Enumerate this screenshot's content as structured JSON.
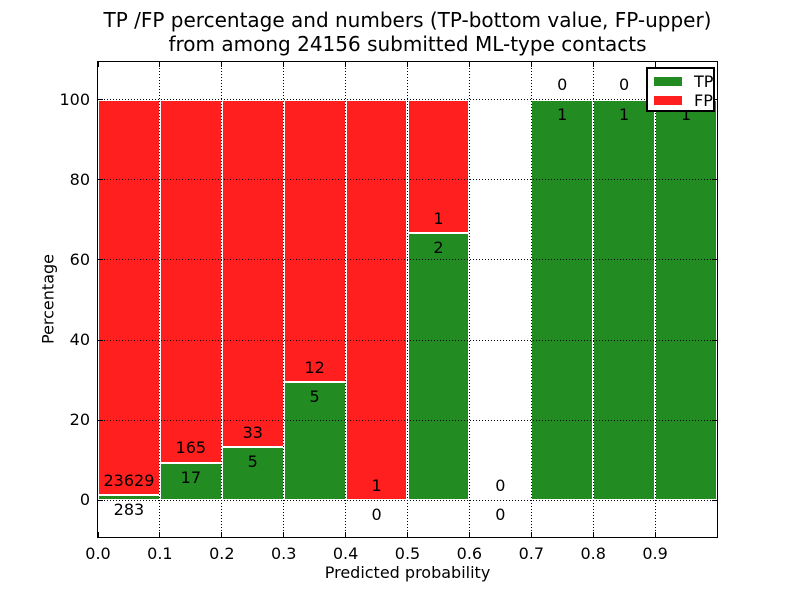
{
  "title": {
    "line1": "TP /FP percentage and numbers (TP-bottom value, FP-upper)",
    "line2": "from among 24156 submitted ML-type contacts"
  },
  "axes": {
    "x_label": "Predicted probability",
    "y_label": "Percentage",
    "x_tick_labels": [
      "0.0",
      "0.1",
      "0.2",
      "0.3",
      "0.4",
      "0.5",
      "0.6",
      "0.7",
      "0.8",
      "0.9"
    ],
    "x_tick_values": [
      0.0,
      0.1,
      0.2,
      0.3,
      0.4,
      0.5,
      0.6,
      0.7,
      0.8,
      0.9
    ],
    "y_tick_labels": [
      "0",
      "20",
      "40",
      "60",
      "80",
      "100"
    ],
    "y_tick_values": [
      0,
      20,
      40,
      60,
      80,
      100
    ],
    "xlim": [
      0.0,
      1.0
    ],
    "ylim": [
      -9.2,
      109.45
    ],
    "grid": "dotted"
  },
  "legend": {
    "position": "upper right",
    "items": [
      {
        "label": "TP",
        "color": "#228B22"
      },
      {
        "label": "FP",
        "color": "#FF1F1F"
      }
    ]
  },
  "chart_data": {
    "type": "bar",
    "stacked": true,
    "title": "TP /FP percentage and numbers (TP-bottom value, FP-upper) from among 24156 submitted ML-type contacts",
    "xlabel": "Predicted probability",
    "ylabel": "Percentage",
    "total_submitted_contacts": 24156,
    "bin_width": 0.1,
    "bin_starts": [
      0.0,
      0.1,
      0.2,
      0.3,
      0.4,
      0.5,
      0.6,
      0.7,
      0.8,
      0.9
    ],
    "categories": [
      "0.0-0.1",
      "0.1-0.2",
      "0.2-0.3",
      "0.3-0.4",
      "0.4-0.5",
      "0.5-0.6",
      "0.6-0.7",
      "0.7-0.8",
      "0.8-0.9",
      "0.9-1.0"
    ],
    "series": [
      {
        "name": "TP",
        "color": "#228B22",
        "counts": [
          283,
          17,
          5,
          5,
          0,
          2,
          0,
          1,
          1,
          1
        ],
        "percent": [
          1.18,
          9.34,
          13.16,
          29.41,
          0,
          66.67,
          null,
          100,
          100,
          100
        ]
      },
      {
        "name": "FP",
        "color": "#FF1F1F",
        "counts": [
          23629,
          165,
          33,
          12,
          1,
          1,
          0,
          0,
          0,
          0
        ],
        "percent": [
          98.82,
          90.66,
          86.84,
          70.59,
          100,
          33.33,
          null,
          0,
          0,
          0
        ]
      }
    ],
    "ylim": [
      -9.2,
      109.45
    ],
    "legend_position": "upper right",
    "grid": "dotted"
  }
}
